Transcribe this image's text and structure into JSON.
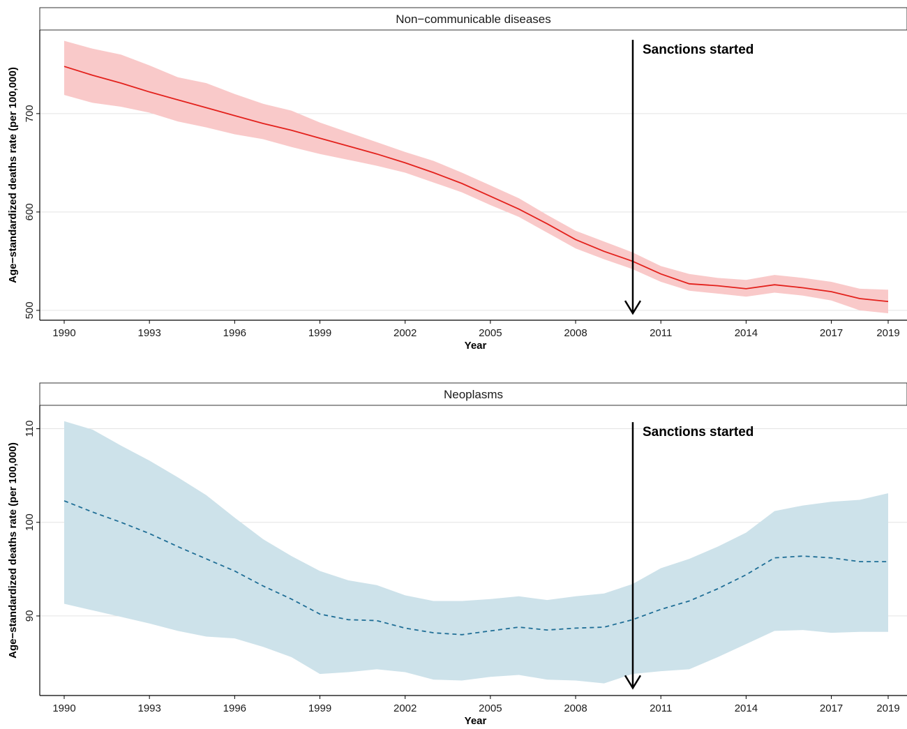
{
  "chart_data": [
    {
      "type": "line",
      "title": "Non−communicable diseases",
      "xlabel": "Year",
      "ylabel": "Age−standardized deaths rate (per 100,000)",
      "x_ticks": [
        1990,
        1993,
        1996,
        1999,
        2002,
        2005,
        2008,
        2011,
        2014,
        2017,
        2019
      ],
      "y_ticks": [
        500,
        600,
        700
      ],
      "xlim": [
        1990,
        2019
      ],
      "ylim": [
        490,
        785
      ],
      "grid": "horizontal",
      "series": [
        {
          "line_style": "solid",
          "color": "#e3211c",
          "band_color": "#f9c9c9",
          "x": [
            1990,
            1991,
            1992,
            1993,
            1994,
            1995,
            1996,
            1997,
            1998,
            1999,
            2000,
            2001,
            2002,
            2003,
            2004,
            2005,
            2006,
            2007,
            2008,
            2009,
            2010,
            2011,
            2012,
            2013,
            2014,
            2015,
            2016,
            2017,
            2018,
            2019
          ],
          "values": [
            748,
            739,
            731,
            722,
            714,
            706,
            698,
            690,
            683,
            675,
            667,
            659,
            650,
            640,
            629,
            616,
            603,
            588,
            572,
            560,
            550,
            537,
            527,
            525,
            522,
            526,
            523,
            519,
            512,
            509
          ],
          "lower": [
            719,
            711,
            707,
            701,
            692,
            686,
            679,
            674,
            666,
            659,
            653,
            647,
            640,
            630,
            620,
            607,
            595,
            579,
            563,
            552,
            542,
            529,
            520,
            517,
            514,
            518,
            515,
            510,
            500,
            497
          ],
          "upper": [
            774,
            766,
            760,
            749,
            737,
            731,
            720,
            710,
            703,
            691,
            681,
            671,
            661,
            652,
            640,
            627,
            614,
            597,
            581,
            570,
            559,
            545,
            537,
            533,
            531,
            536,
            533,
            529,
            522,
            521
          ]
        }
      ],
      "annotation": {
        "text": "Sanctions started",
        "x": 2010,
        "y_top": 775,
        "y_bottom": 497
      }
    },
    {
      "type": "line",
      "title": "Neoplasms",
      "xlabel": "Year",
      "ylabel": "Age−standardized deaths rate (per 100,000)",
      "x_ticks": [
        1990,
        1993,
        1996,
        1999,
        2002,
        2005,
        2008,
        2011,
        2014,
        2017,
        2019
      ],
      "y_ticks": [
        90,
        100,
        110
      ],
      "xlim": [
        1990,
        2019
      ],
      "ylim": [
        81.5,
        112.5
      ],
      "grid": "horizontal",
      "series": [
        {
          "line_style": "dashed",
          "color": "#1f6e96",
          "band_color": "#cde2ea",
          "x": [
            1990,
            1991,
            1992,
            1993,
            1994,
            1995,
            1996,
            1997,
            1998,
            1999,
            2000,
            2001,
            2002,
            2003,
            2004,
            2005,
            2006,
            2007,
            2008,
            2009,
            2010,
            2011,
            2012,
            2013,
            2014,
            2015,
            2016,
            2017,
            2018,
            2019
          ],
          "values": [
            102.3,
            101.1,
            100.0,
            98.8,
            97.4,
            96.1,
            94.8,
            93.2,
            91.8,
            90.2,
            89.6,
            89.5,
            88.7,
            88.2,
            88.0,
            88.4,
            88.8,
            88.5,
            88.7,
            88.8,
            89.6,
            90.7,
            91.6,
            92.9,
            94.4,
            96.2,
            96.4,
            96.2,
            95.8,
            95.8
          ],
          "lower": [
            91.3,
            90.6,
            89.9,
            89.2,
            88.4,
            87.8,
            87.6,
            86.7,
            85.6,
            83.8,
            84.0,
            84.3,
            84.0,
            83.2,
            83.1,
            83.5,
            83.7,
            83.2,
            83.1,
            82.8,
            83.8,
            84.1,
            84.3,
            85.6,
            87.0,
            88.4,
            88.5,
            88.2,
            88.3,
            88.3
          ],
          "upper": [
            110.8,
            109.9,
            108.2,
            106.6,
            104.8,
            102.9,
            100.5,
            98.2,
            96.4,
            94.8,
            93.8,
            93.3,
            92.2,
            91.6,
            91.6,
            91.8,
            92.1,
            91.7,
            92.1,
            92.4,
            93.4,
            95.1,
            96.1,
            97.4,
            98.9,
            101.2,
            101.8,
            102.2,
            102.4,
            103.1
          ]
        }
      ],
      "annotation": {
        "text": "Sanctions started",
        "x": 2010,
        "y_top": 110.7,
        "y_bottom": 82.3
      }
    }
  ]
}
